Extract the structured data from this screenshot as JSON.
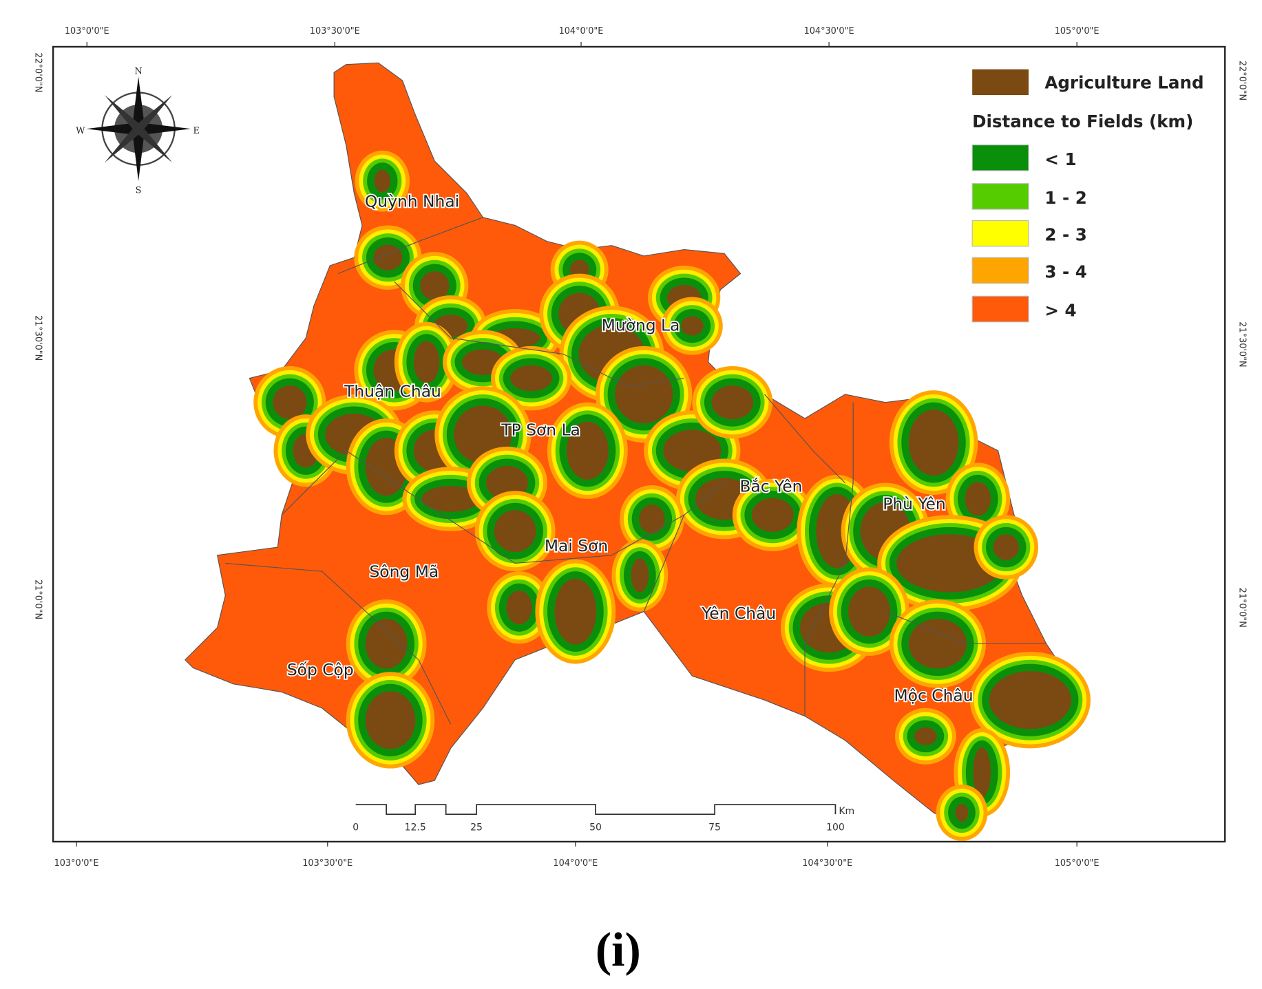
{
  "graticule": {
    "top": [
      "103°0'0\"E",
      "103°30'0\"E",
      "104°0'0\"E",
      "104°30'0\"E",
      "105°0'0\"E"
    ],
    "bottom": [
      "103°0'0\"E",
      "103°30'0\"E",
      "104°0'0\"E",
      "104°30'0\"E",
      "105°0'0\"E"
    ],
    "left": [
      "22°0'0\"N",
      "21°30'0\"N",
      "21°0'0\"N"
    ],
    "right": [
      "22°0'0\"N",
      "21°30'0\"N",
      "21°0'0\"N"
    ]
  },
  "compass": {
    "n": "N",
    "s": "S",
    "e": "E",
    "w": "W"
  },
  "legend": {
    "agriculture": "Agriculture Land",
    "title": "Distance to Fields (km)",
    "classes": [
      "< 1",
      "1 - 2",
      "2 - 3",
      "3 - 4",
      "> 4"
    ]
  },
  "districts": [
    "Quỳnh Nhai",
    "Mường La",
    "Thuận Châu",
    "TP Sơn La",
    "Bắc Yên",
    "Phù Yên",
    "Mai Sơn",
    "Sông Mã",
    "Yên Châu",
    "Sốp Cộp",
    "Mộc Châu"
  ],
  "scale_bar": {
    "labels": [
      "0",
      "12.5",
      "25",
      "50",
      "75",
      "100"
    ],
    "unit": "Km"
  },
  "caption": "(i)"
}
